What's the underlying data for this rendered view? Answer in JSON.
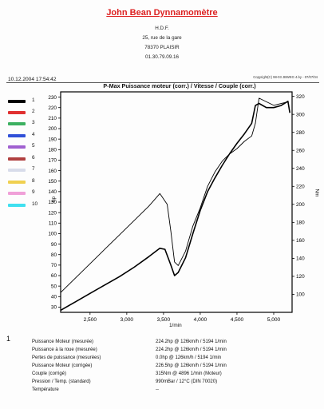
{
  "header": {
    "company": "John Bean Dynnamomètre",
    "address_lines": [
      "H.D.F.",
      "25, rue de la gare",
      "78370 PLAISIR",
      "01.30.79.09.16"
    ],
    "date": "10.12.2004 17:54:42",
    "copyright": "Copyright(C) 98-03 JBWEG 4.by - 07/07/04"
  },
  "legend": {
    "items": [
      {
        "label": "1",
        "color": "#000000"
      },
      {
        "label": "2",
        "color": "#e03030"
      },
      {
        "label": "3",
        "color": "#3cb060"
      },
      {
        "label": "4",
        "color": "#3050d8"
      },
      {
        "label": "5",
        "color": "#a060d0"
      },
      {
        "label": "6",
        "color": "#b04040"
      },
      {
        "label": "7",
        "color": "#d8dcea"
      },
      {
        "label": "8",
        "color": "#f0d050"
      },
      {
        "label": "9",
        "color": "#f0a0d8"
      },
      {
        "label": "10",
        "color": "#40e0f0"
      }
    ]
  },
  "chart_data": {
    "type": "line",
    "title": "P-Max Puissance moteur (corr.) / Vitesse / Couple (corr.)",
    "xlabel": "1/min",
    "ylabel_left": "hp",
    "ylabel_right": "Nm",
    "xlim": [
      2100,
      5250
    ],
    "ylim_left": [
      25,
      235
    ],
    "ylim_right": [
      80,
      325
    ],
    "x_ticks": [
      2500,
      3000,
      3500,
      4000,
      4500,
      5000
    ],
    "x_tick_labels": [
      "2,500",
      "3,000",
      "3,500",
      "4,000",
      "4,500",
      "5,000"
    ],
    "y_left_ticks": [
      30,
      40,
      50,
      60,
      70,
      80,
      90,
      100,
      110,
      120,
      130,
      140,
      150,
      160,
      170,
      180,
      190,
      200,
      210,
      220,
      230
    ],
    "y_right_ticks": [
      100,
      120,
      140,
      160,
      180,
      200,
      220,
      240,
      260,
      280,
      300,
      320
    ],
    "grid": false,
    "series": [
      {
        "axis": "left",
        "x": [
          2100,
          2300,
          2500,
          2700,
          2900,
          3100,
          3300,
          3450,
          3520,
          3600,
          3650,
          3700,
          3800,
          3900,
          4000,
          4100,
          4200,
          4300,
          4400,
          4500,
          4600,
          4700,
          4750,
          4800,
          4900,
          5000,
          5100,
          5194,
          5220
        ],
        "y": [
          27,
          35,
          43,
          51,
          59,
          68,
          78,
          86,
          85,
          70,
          60,
          63,
          77,
          100,
          122,
          140,
          153,
          165,
          176,
          186,
          195,
          205,
          222,
          224,
          220,
          220,
          222,
          226,
          215
        ]
      },
      {
        "axis": "right",
        "x": [
          2100,
          2300,
          2500,
          2700,
          2900,
          3100,
          3300,
          3450,
          3550,
          3600,
          3650,
          3700,
          3800,
          3900,
          4000,
          4100,
          4200,
          4300,
          4400,
          4500,
          4600,
          4700,
          4750,
          4800,
          4900,
          5000,
          5100,
          5200
        ],
        "y": [
          102,
          118,
          134,
          150,
          166,
          182,
          198,
          212,
          200,
          170,
          136,
          132,
          148,
          176,
          196,
          220,
          236,
          248,
          256,
          262,
          270,
          276,
          290,
          318,
          314,
          310,
          312,
          314
        ]
      }
    ]
  },
  "results": {
    "test_number": "1",
    "rows": [
      {
        "label": "Puissance Moteur (mesurée)",
        "value": "224.2hp @ 126km/h / 5194 1/min"
      },
      {
        "label": "Puissance à la roue (mesurée)",
        "value": "224.2hp @ 126km/h / 5194 1/min"
      },
      {
        "label": "Pertes de puissance (mesurées)",
        "value": "0.0hp @ 126km/h / 5194 1/min"
      },
      {
        "label": "Puissance Moteur (corrigée)",
        "value": "226.5hp @ 126km/h / 5194 1/min"
      },
      {
        "label": "Couple (corrigé)",
        "value": "315Nm @ 4896 1/min (Moteur)"
      },
      {
        "label": "Pression / Temp. (standard)",
        "value": "990mBar / 12°C  (DIN 70020)"
      },
      {
        "label": "Température",
        "value": "--"
      }
    ]
  }
}
